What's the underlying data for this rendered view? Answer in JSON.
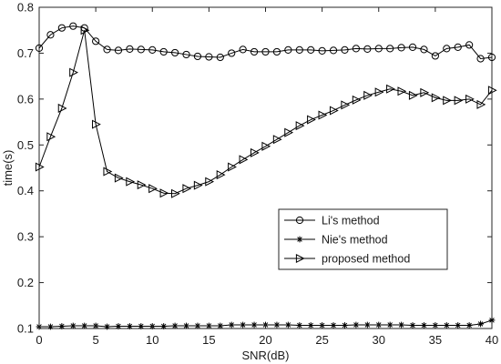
{
  "chart_data": {
    "type": "line",
    "xlabel": "SNR(dB)",
    "ylabel": "time(s)",
    "xlim": [
      0,
      40
    ],
    "ylim": [
      0.1,
      0.8
    ],
    "x_ticks": [
      0,
      5,
      10,
      15,
      20,
      25,
      30,
      35,
      40
    ],
    "y_ticks": [
      0.1,
      0.2,
      0.3,
      0.4,
      0.5,
      0.6,
      0.7,
      0.8
    ],
    "grid": false,
    "legend_position": "center-right",
    "x": [
      0,
      1,
      2,
      3,
      4,
      5,
      6,
      7,
      8,
      9,
      10,
      11,
      12,
      13,
      14,
      15,
      16,
      17,
      18,
      19,
      20,
      21,
      22,
      23,
      24,
      25,
      26,
      27,
      28,
      29,
      30,
      31,
      32,
      33,
      34,
      35,
      36,
      37,
      38,
      39,
      40
    ],
    "series": [
      {
        "name": "Li's method",
        "marker": "circle",
        "color": "#000000",
        "values": [
          0.711,
          0.74,
          0.755,
          0.759,
          0.755,
          0.726,
          0.708,
          0.706,
          0.709,
          0.708,
          0.707,
          0.703,
          0.701,
          0.697,
          0.693,
          0.692,
          0.691,
          0.7,
          0.708,
          0.703,
          0.703,
          0.703,
          0.707,
          0.707,
          0.707,
          0.705,
          0.706,
          0.707,
          0.71,
          0.709,
          0.71,
          0.71,
          0.712,
          0.713,
          0.708,
          0.694,
          0.71,
          0.713,
          0.718,
          0.688,
          0.691
        ]
      },
      {
        "name": "Nie's method",
        "marker": "star",
        "color": "#000000",
        "values": [
          0.104,
          0.104,
          0.105,
          0.106,
          0.106,
          0.106,
          0.104,
          0.105,
          0.105,
          0.105,
          0.105,
          0.105,
          0.106,
          0.106,
          0.106,
          0.106,
          0.106,
          0.108,
          0.108,
          0.108,
          0.108,
          0.108,
          0.108,
          0.107,
          0.107,
          0.107,
          0.107,
          0.107,
          0.108,
          0.108,
          0.108,
          0.108,
          0.108,
          0.107,
          0.107,
          0.107,
          0.107,
          0.107,
          0.107,
          0.11,
          0.118
        ]
      },
      {
        "name": "proposed method",
        "marker": "triangle-right",
        "color": "#000000",
        "values": [
          0.452,
          0.518,
          0.58,
          0.658,
          0.75,
          0.545,
          0.442,
          0.428,
          0.42,
          0.413,
          0.405,
          0.395,
          0.394,
          0.405,
          0.412,
          0.42,
          0.435,
          0.452,
          0.468,
          0.483,
          0.497,
          0.512,
          0.527,
          0.542,
          0.555,
          0.565,
          0.575,
          0.587,
          0.598,
          0.608,
          0.615,
          0.622,
          0.617,
          0.608,
          0.614,
          0.603,
          0.597,
          0.597,
          0.6,
          0.588,
          0.619
        ]
      }
    ]
  }
}
